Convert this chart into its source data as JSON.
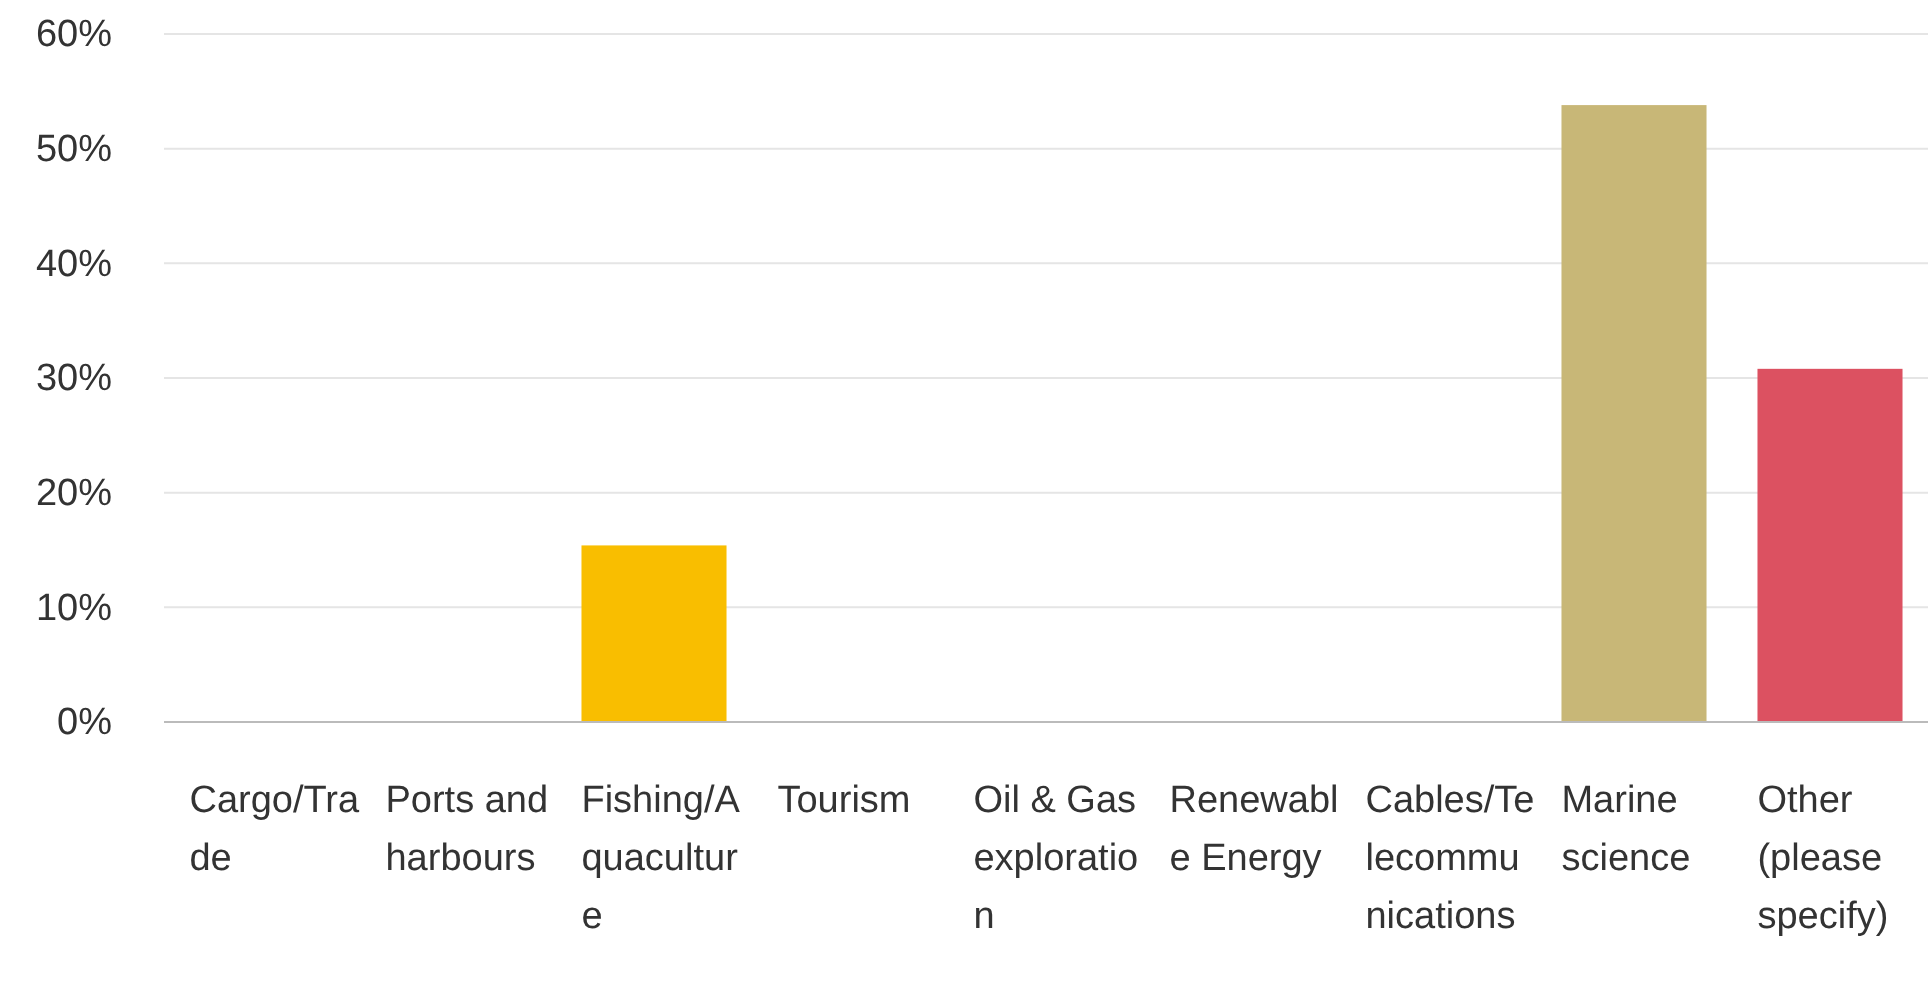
{
  "chart_data": {
    "type": "bar",
    "categories": [
      "Cargo/Trade",
      "Ports and harbours",
      "Fishing/Aquaculture",
      "Tourism",
      "Oil & Gas exploration",
      "Renewable Energy",
      "Cables/Telecommunications",
      "Marine science",
      "Other (please specify)"
    ],
    "values": [
      0,
      0,
      15.4,
      0,
      0,
      0,
      0,
      53.8,
      30.8
    ],
    "colors": [
      "#2dccd3",
      "#507cb6",
      "#f9be00",
      "#6bc8cd",
      "#f05b24",
      "#00bf6f",
      "#7d5ba6",
      "#c8b777",
      "#dc5161"
    ],
    "ylim": [
      0,
      60
    ],
    "yticks": [
      {
        "value": 0,
        "label": "0%"
      },
      {
        "value": 10,
        "label": "10%"
      },
      {
        "value": 20,
        "label": "20%"
      },
      {
        "value": 30,
        "label": "30%"
      },
      {
        "value": 40,
        "label": "40%"
      },
      {
        "value": 50,
        "label": "50%"
      },
      {
        "value": 60,
        "label": "60%"
      }
    ],
    "grid": "y"
  }
}
